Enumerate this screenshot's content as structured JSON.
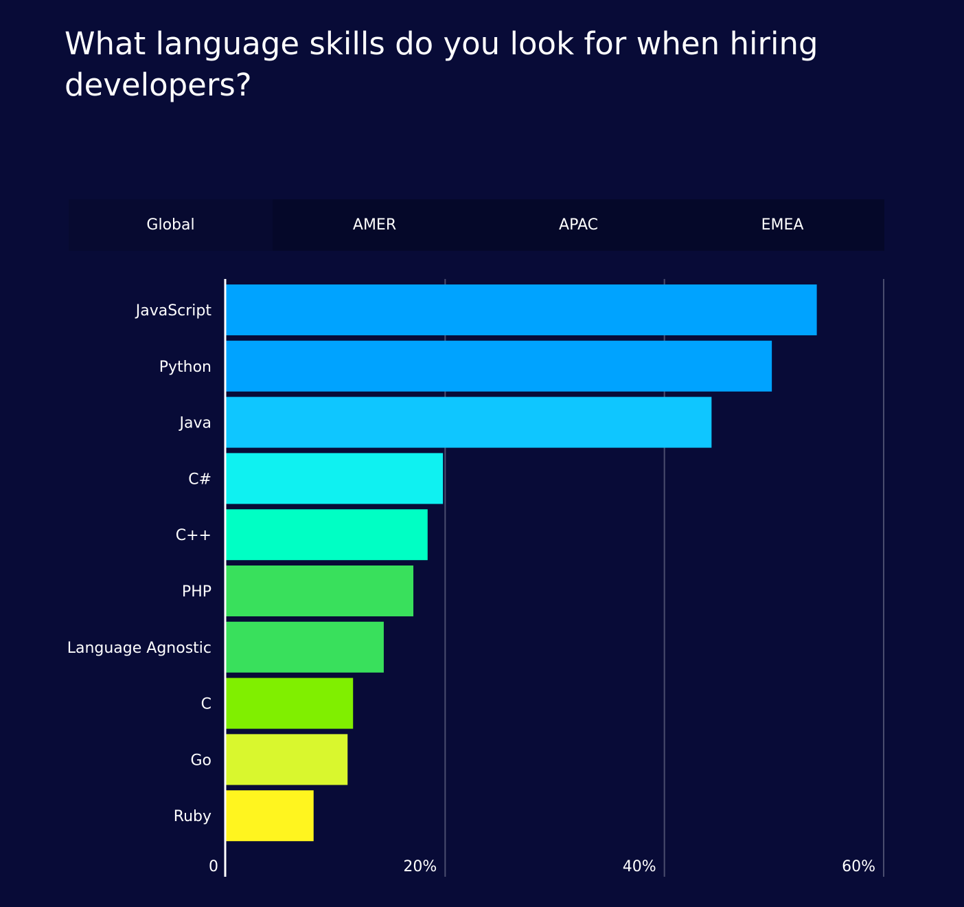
{
  "header": {
    "title": "What language skills do you look for when hiring developers?"
  },
  "tabs": [
    {
      "label": "Global",
      "active": true
    },
    {
      "label": "AMER",
      "active": false
    },
    {
      "label": "APAC",
      "active": false
    },
    {
      "label": "EMEA",
      "active": false
    }
  ],
  "colors": {
    "background": "#080b37",
    "tab_background": "#050829",
    "gridline": "#4a4d6e",
    "axis": "#ffffff"
  },
  "chart_data": {
    "type": "bar",
    "orientation": "horizontal",
    "title": "What language skills do you look for when hiring developers?",
    "categories": [
      "JavaScript",
      "Python",
      "Java",
      "C#",
      "C++",
      "PHP",
      "Language Agnostic",
      "C",
      "Go",
      "Ruby"
    ],
    "values": [
      53.9,
      49.8,
      44.3,
      19.8,
      18.4,
      17.1,
      14.4,
      11.6,
      11.1,
      8.0
    ],
    "bar_colors": [
      "#00a3ff",
      "#00a3ff",
      "#0fc6ff",
      "#0ff1f1",
      "#00ffc4",
      "#39e05c",
      "#39e05c",
      "#80ef00",
      "#d9f72e",
      "#fff51f"
    ],
    "xlim": [
      0,
      60
    ],
    "xticks": [
      0,
      20,
      40,
      60
    ],
    "xtick_labels": [
      "0",
      "20%",
      "40%",
      "60%"
    ],
    "grid": "vertical",
    "xlabel": "",
    "ylabel": ""
  }
}
